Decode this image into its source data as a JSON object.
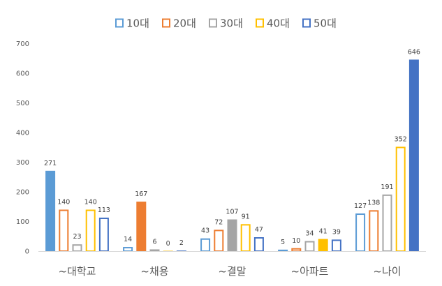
{
  "chart_data": {
    "type": "bar",
    "categories": [
      "~대학교",
      "~채용",
      "~결말",
      "~아파트",
      "~나이"
    ],
    "series": [
      {
        "name": "10대",
        "color": "#5b9bd5",
        "values": [
          271,
          14,
          43,
          5,
          127
        ],
        "filled": [
          true,
          false,
          false,
          true,
          false
        ]
      },
      {
        "name": "20대",
        "color": "#ed7d31",
        "values": [
          140,
          167,
          72,
          10,
          138
        ],
        "filled": [
          false,
          true,
          false,
          false,
          false
        ]
      },
      {
        "name": "30대",
        "color": "#a5a5a5",
        "values": [
          23,
          6,
          107,
          34,
          191
        ],
        "filled": [
          false,
          true,
          true,
          false,
          false
        ]
      },
      {
        "name": "40대",
        "color": "#ffc000",
        "values": [
          140,
          0,
          91,
          41,
          352
        ],
        "filled": [
          false,
          false,
          false,
          true,
          false
        ]
      },
      {
        "name": "50대",
        "color": "#4472c4",
        "values": [
          113,
          2,
          47,
          39,
          646
        ],
        "filled": [
          false,
          true,
          false,
          false,
          true
        ]
      }
    ],
    "yticks": [
      0,
      100,
      200,
      300,
      400,
      500,
      600,
      700
    ],
    "ylim": [
      0,
      700
    ],
    "grid": false,
    "legend_position": "top-center"
  }
}
